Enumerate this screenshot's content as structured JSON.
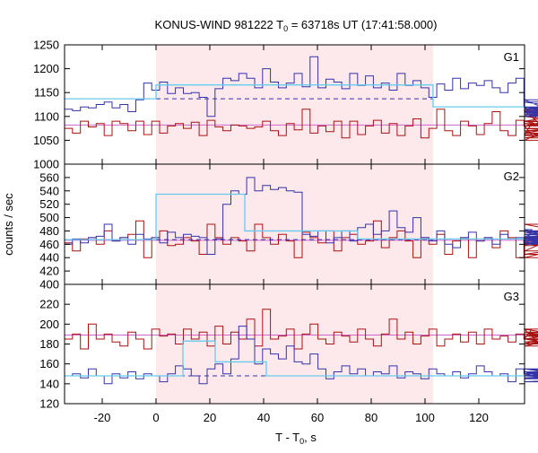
{
  "chart_data": {
    "type": "line",
    "title": "KONUS-WIND 981222 T",
    "title_sub": "0",
    "title_rest": " = 63718s UT (17:41:58.000)",
    "xlabel": "T - T",
    "xlabel_sub": "0",
    "xlabel_rest": ", s",
    "ylabel": "counts / sec",
    "xlim": [
      -34,
      137
    ],
    "xticks": [
      -20,
      0,
      20,
      40,
      60,
      80,
      100,
      120
    ],
    "xtick_labels": [
      "-20",
      "0",
      "20",
      "40",
      "60",
      "80",
      "100",
      "120"
    ],
    "highlight_interval": [
      0,
      103
    ],
    "colors": {
      "high_band": "#3333aa",
      "low_band": "#aa1111",
      "fit_line": "#66ccee",
      "bg_line": "#cc66cc",
      "highlight": "#fde8ec"
    },
    "panels": [
      {
        "label": "G1",
        "ylim": [
          1000,
          1250
        ],
        "yticks": [
          1000,
          1050,
          1100,
          1150,
          1200,
          1250
        ],
        "ytick_labels": [
          "1000",
          "1050",
          "1100",
          "1150",
          "1200",
          "1250"
        ],
        "blue_x0": -34,
        "blue_dx": 2.944,
        "blue": [
          1115,
          1112,
          1120,
          1118,
          1125,
          1130,
          1118,
          1125,
          1110,
          1135,
          1170,
          1155,
          1172,
          1148,
          1160,
          1148,
          1150,
          1140,
          1100,
          1158,
          1180,
          1175,
          1190,
          1180,
          1160,
          1200,
          1172,
          1160,
          1170,
          1190,
          1162,
          1225,
          1160,
          1178,
          1172,
          1158,
          1190,
          1165,
          1185,
          1160,
          1170,
          1155,
          1190,
          1165,
          1175,
          1160,
          1140,
          1168,
          1155,
          1180,
          1158,
          1170,
          1165,
          1175,
          1160,
          1150,
          1170,
          1180,
          1120,
          1100,
          1120,
          1110,
          1135,
          1100,
          1115,
          1108,
          1110,
          1120,
          1105,
          1115,
          1130,
          1100,
          1118,
          1120,
          1115,
          1120,
          1100,
          1108,
          1105
        ],
        "red_x0": -34,
        "red_dx": 2.944,
        "red": [
          1075,
          1065,
          1090,
          1078,
          1085,
          1060,
          1090,
          1085,
          1070,
          1090,
          1062,
          1090,
          1065,
          1080,
          1085,
          1075,
          1088,
          1060,
          1092,
          1078,
          1070,
          1082,
          1080,
          1075,
          1078,
          1090,
          1070,
          1060,
          1085,
          1072,
          1115,
          1065,
          1080,
          1068,
          1090,
          1055,
          1090,
          1062,
          1080,
          1092,
          1065,
          1085,
          1060,
          1080,
          1095,
          1055,
          1075,
          1115,
          1070,
          1060,
          1090,
          1080,
          1062,
          1085,
          1110,
          1070,
          1060,
          1092,
          1080,
          1062,
          1112,
          1070,
          1050,
          1090,
          1105,
          1090,
          1060,
          1080,
          1115,
          1075,
          1065,
          1100,
          1070,
          1085,
          1055,
          1090,
          1080,
          1110,
          1075
        ],
        "fit_line": [
          [
            -34,
            1137
          ],
          [
            0,
            1137
          ],
          [
            0,
            1166
          ],
          [
            103,
            1166
          ],
          [
            103,
            1120
          ],
          [
            137,
            1120
          ]
        ],
        "bg_dashed": [
          [
            0,
            1137
          ],
          [
            103,
            1137
          ]
        ],
        "bg_pink": [
          [
            -34,
            1082
          ],
          [
            137,
            1082
          ]
        ]
      },
      {
        "label": "G2",
        "ylim": [
          400,
          580
        ],
        "yticks": [
          400,
          420,
          440,
          460,
          480,
          500,
          520,
          540,
          560
        ],
        "ytick_labels": [
          "400",
          "420",
          "440",
          "460",
          "480",
          "500",
          "520",
          "540",
          "560"
        ],
        "blue_x0": -34,
        "blue_dx": 2.944,
        "blue": [
          460,
          468,
          462,
          470,
          472,
          490,
          465,
          470,
          460,
          475,
          468,
          470,
          462,
          478,
          470,
          475,
          472,
          470,
          445,
          468,
          520,
          540,
          535,
          560,
          540,
          548,
          542,
          545,
          540,
          538,
          475,
          472,
          480,
          462,
          470,
          480,
          465,
          485,
          490,
          475,
          480,
          510,
          485,
          478,
          500,
          470,
          465,
          480,
          460,
          455,
          470,
          478,
          465,
          470,
          460,
          475,
          468,
          470,
          462,
          482,
          475,
          465,
          470,
          478,
          468,
          470,
          462,
          475,
          470,
          466,
          462,
          470,
          468,
          460,
          480,
          472,
          470,
          460,
          475
        ],
        "red_x0": -34,
        "red_dx": 2.944,
        "red": [
          462,
          450,
          468,
          470,
          460,
          480,
          465,
          470,
          475,
          495,
          440,
          470,
          480,
          458,
          460,
          470,
          465,
          445,
          490,
          470,
          460,
          470,
          465,
          450,
          490,
          470,
          460,
          475,
          465,
          440,
          478,
          470,
          462,
          480,
          450,
          470,
          475,
          460,
          465,
          495,
          455,
          470,
          480,
          465,
          440,
          470,
          460,
          475,
          445,
          465,
          470,
          440,
          465,
          470,
          455,
          480,
          470,
          440,
          470,
          465,
          458,
          470,
          462,
          450,
          480,
          470,
          445,
          460,
          490,
          465,
          470,
          440,
          480,
          470,
          460,
          475,
          470,
          480,
          480
        ],
        "fit_line": [
          [
            -34,
            467
          ],
          [
            0,
            467
          ],
          [
            0,
            535
          ],
          [
            33,
            535
          ],
          [
            33,
            480
          ],
          [
            75,
            480
          ],
          [
            75,
            468
          ],
          [
            137,
            468
          ]
        ],
        "bg_dashed": [
          [
            0,
            467
          ],
          [
            103,
            467
          ]
        ],
        "bg_pink": [
          [
            -34,
            466
          ],
          [
            137,
            466
          ]
        ]
      },
      {
        "label": "G3",
        "ylim": [
          120,
          240
        ],
        "yticks": [
          120,
          140,
          160,
          180,
          200,
          220
        ],
        "ytick_labels": [
          "120",
          "140",
          "160",
          "180",
          "200",
          "220"
        ],
        "blue_x0": -34,
        "blue_dx": 2.944,
        "blue": [
          148,
          150,
          146,
          155,
          148,
          140,
          150,
          146,
          152,
          145,
          150,
          148,
          142,
          150,
          158,
          155,
          148,
          140,
          155,
          160,
          150,
          165,
          198,
          185,
          160,
          175,
          170,
          165,
          178,
          162,
          160,
          170,
          155,
          145,
          152,
          158,
          150,
          155,
          148,
          152,
          150,
          158,
          146,
          152,
          150,
          145,
          155,
          150,
          148,
          152,
          146,
          150,
          158,
          152,
          148,
          150,
          142,
          155,
          150,
          148,
          152,
          145,
          150,
          155,
          148,
          152,
          146,
          150,
          148,
          145,
          152,
          150,
          148,
          155,
          146,
          150,
          148,
          142,
          150
        ],
        "red_x0": -34,
        "red_dx": 2.944,
        "red": [
          185,
          190,
          175,
          200,
          185,
          190,
          182,
          178,
          192,
          185,
          175,
          195,
          188,
          190,
          180,
          195,
          185,
          192,
          178,
          198,
          180,
          192,
          185,
          205,
          178,
          215,
          185,
          188,
          195,
          175,
          190,
          200,
          185,
          180,
          192,
          188,
          182,
          195,
          185,
          178,
          190,
          205,
          185,
          192,
          180,
          188,
          195,
          178,
          185,
          190,
          182,
          192,
          180,
          195,
          185,
          188,
          182,
          190,
          185,
          195,
          180,
          188,
          192,
          185,
          178,
          190,
          185,
          195,
          182,
          188,
          190,
          185,
          180,
          192,
          185,
          188,
          182,
          190,
          185
        ],
        "fit_line": [
          [
            -34,
            148
          ],
          [
            10,
            148
          ],
          [
            10,
            183
          ],
          [
            22,
            183
          ],
          [
            22,
            162
          ],
          [
            41,
            162
          ],
          [
            41,
            148
          ],
          [
            137,
            148
          ]
        ],
        "bg_dashed": [
          [
            0,
            148
          ],
          [
            103,
            148
          ]
        ],
        "bg_pink": [
          [
            -34,
            189
          ],
          [
            137,
            189
          ]
        ]
      }
    ]
  }
}
